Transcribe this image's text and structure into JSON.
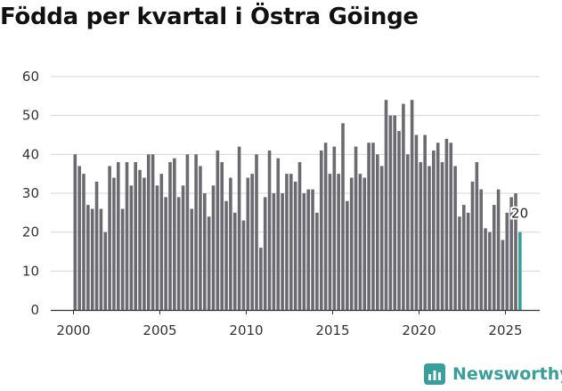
{
  "title": "Födda per kvartal i Östra Göinge",
  "brand": {
    "name": "Newsworthy",
    "color": "#3a9e9a"
  },
  "chart_data": {
    "type": "bar",
    "title": "Födda per kvartal i Östra Göinge",
    "xlabel": "",
    "ylabel": "",
    "ylim": [
      0,
      60
    ],
    "yticks": [
      0,
      10,
      20,
      30,
      40,
      50,
      60
    ],
    "xticks": [
      "2000",
      "2005",
      "2010",
      "2015",
      "2020",
      "2025"
    ],
    "x_start_year": 2000,
    "periods_per_year": 4,
    "grid": true,
    "bar_color": "#6b6a70",
    "highlight_color": "#3a9e9a",
    "highlight_last": true,
    "last_value_label": "20",
    "values": [
      40,
      37,
      35,
      27,
      26,
      33,
      26,
      20,
      37,
      34,
      38,
      26,
      38,
      32,
      38,
      36,
      34,
      40,
      40,
      32,
      35,
      29,
      38,
      39,
      29,
      32,
      40,
      26,
      40,
      37,
      30,
      24,
      32,
      41,
      38,
      28,
      34,
      25,
      42,
      23,
      34,
      35,
      40,
      16,
      29,
      41,
      30,
      39,
      30,
      35,
      35,
      33,
      38,
      30,
      31,
      31,
      25,
      41,
      43,
      35,
      42,
      35,
      48,
      28,
      34,
      42,
      35,
      34,
      43,
      43,
      40,
      37,
      54,
      50,
      50,
      46,
      53,
      40,
      54,
      45,
      38,
      45,
      37,
      41,
      43,
      38,
      44,
      43,
      37,
      24,
      27,
      25,
      33,
      38,
      31,
      21,
      20,
      27,
      31,
      18,
      25,
      29,
      30,
      20
    ]
  }
}
